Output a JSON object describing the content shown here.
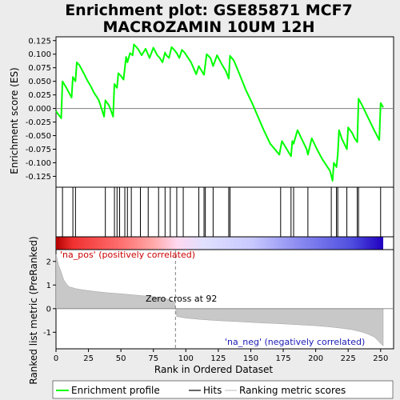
{
  "chart_data": {
    "type": "line",
    "title_line1": "Enrichment plot: GSE85871 MCF7",
    "title_line2": "MACROZAMIN 10UM 12H",
    "xlabel": "Rank in Ordered Dataset",
    "ylabel_top": "Enrichment score (ES)",
    "ylabel_bottom": "Ranked list metric (PreRanked)",
    "xlim": [
      0,
      260
    ],
    "x_ticks": [
      0,
      25,
      50,
      75,
      100,
      125,
      150,
      175,
      200,
      225,
      250
    ],
    "es_ylim": [
      -0.145,
      0.132
    ],
    "es_ticks": [
      "0.125",
      "0.100",
      "0.075",
      "0.050",
      "0.025",
      "0.000",
      "-0.025",
      "-0.050",
      "-0.075",
      "-0.100",
      "-0.125"
    ],
    "metric_ylim": [
      -1.7,
      2.5
    ],
    "metric_ticks": [
      2,
      1,
      0,
      -1
    ],
    "colors": {
      "es_line": "#00ff00",
      "hits": "#000000",
      "metric_fill": "#c8c8c8",
      "pos_text": "#cc0000",
      "neg_text": "#1a1ab4",
      "zero_cross": "#808080"
    },
    "es_curve": {
      "x": [
        0,
        4,
        5,
        8,
        12,
        13,
        15,
        16,
        18,
        22,
        24,
        27,
        29,
        33,
        37,
        38,
        41,
        44,
        45,
        47,
        48,
        50,
        52,
        54,
        55,
        57,
        59,
        60,
        63,
        66,
        69,
        72,
        75,
        78,
        80,
        82,
        84,
        85,
        87,
        89,
        91,
        93,
        95,
        97,
        99,
        104,
        108,
        110,
        112,
        114,
        116,
        119,
        121,
        124,
        128,
        131,
        133,
        134,
        137,
        141,
        146,
        151,
        160,
        165,
        172,
        174,
        179,
        181,
        182,
        183,
        186,
        190,
        193,
        194,
        197,
        201,
        205,
        211,
        213,
        214,
        216,
        217,
        218,
        220,
        224,
        225,
        228,
        230,
        232,
        233,
        236,
        240,
        245,
        249,
        250,
        252
      ],
      "y": [
        -0.005,
        -0.018,
        0.05,
        0.038,
        0.02,
        0.058,
        0.05,
        0.085,
        0.08,
        0.062,
        0.052,
        0.04,
        0.03,
        0.015,
        -0.015,
        0.015,
        0.005,
        -0.015,
        0.045,
        0.038,
        0.065,
        0.06,
        0.053,
        0.095,
        0.085,
        0.102,
        0.098,
        0.118,
        0.11,
        0.098,
        0.11,
        0.093,
        0.112,
        0.098,
        0.093,
        0.085,
        0.103,
        0.098,
        0.093,
        0.113,
        0.108,
        0.102,
        0.093,
        0.108,
        0.103,
        0.085,
        0.063,
        0.078,
        0.07,
        0.062,
        0.1,
        0.093,
        0.078,
        0.098,
        0.08,
        0.068,
        0.055,
        0.097,
        0.088,
        0.065,
        0.035,
        0.01,
        -0.04,
        -0.065,
        -0.085,
        -0.06,
        -0.08,
        -0.088,
        -0.06,
        -0.065,
        -0.04,
        -0.06,
        -0.075,
        -0.085,
        -0.055,
        -0.075,
        -0.093,
        -0.115,
        -0.133,
        -0.1,
        -0.108,
        -0.085,
        -0.04,
        -0.055,
        -0.075,
        -0.035,
        -0.045,
        -0.055,
        -0.062,
        0.018,
        0.005,
        -0.015,
        -0.04,
        -0.058,
        0.01,
        0.002
      ]
    },
    "hits": [
      5,
      13,
      15,
      38,
      45,
      47,
      49,
      53,
      55,
      58,
      65,
      71,
      79,
      84,
      88,
      93,
      98,
      110,
      114,
      115,
      121,
      133,
      134,
      173,
      181,
      183,
      194,
      212,
      216,
      217,
      224,
      232,
      233,
      250
    ],
    "metric_curve": {
      "x": [
        0,
        2,
        4,
        6,
        8,
        10,
        15,
        20,
        30,
        40,
        50,
        60,
        70,
        80,
        85,
        91,
        92,
        93,
        100,
        110,
        120,
        130,
        140,
        150,
        160,
        170,
        180,
        190,
        200,
        210,
        220,
        228,
        235,
        240,
        245,
        248,
        250,
        252
      ],
      "y": [
        2.3,
        1.85,
        1.55,
        1.22,
        1.05,
        0.93,
        0.85,
        0.8,
        0.73,
        0.67,
        0.63,
        0.58,
        0.53,
        0.47,
        0.42,
        0.28,
        0.05,
        -0.33,
        -0.4,
        -0.45,
        -0.49,
        -0.52,
        -0.55,
        -0.58,
        -0.61,
        -0.63,
        -0.66,
        -0.69,
        -0.72,
        -0.77,
        -0.83,
        -0.89,
        -0.98,
        -1.07,
        -1.2,
        -1.35,
        -1.48,
        -1.58
      ]
    },
    "zero_cross_x": 92,
    "zero_cross_label": "Zero cross at 92",
    "pos_label": "'na_pos' (positively correlated)",
    "neg_label": "'na_neg' (negatively correlated)",
    "gradient_stops": [
      {
        "offset": 0.0,
        "color": "#b30000"
      },
      {
        "offset": 0.05,
        "color": "#f03030"
      },
      {
        "offset": 0.2,
        "color": "#ff7070"
      },
      {
        "offset": 0.3,
        "color": "#ffaaaa"
      },
      {
        "offset": 0.37,
        "color": "#ffd8f0"
      },
      {
        "offset": 0.45,
        "color": "#e0e0ff"
      },
      {
        "offset": 0.6,
        "color": "#c8c8ff"
      },
      {
        "offset": 0.75,
        "color": "#8888f0"
      },
      {
        "offset": 0.9,
        "color": "#5050e0"
      },
      {
        "offset": 1.0,
        "color": "#2000c0"
      }
    ],
    "legend": [
      {
        "label": "Enrichment profile",
        "kind": "es"
      },
      {
        "label": "Hits",
        "kind": "hit"
      },
      {
        "label": "Ranking metric scores",
        "kind": "metric"
      }
    ]
  }
}
